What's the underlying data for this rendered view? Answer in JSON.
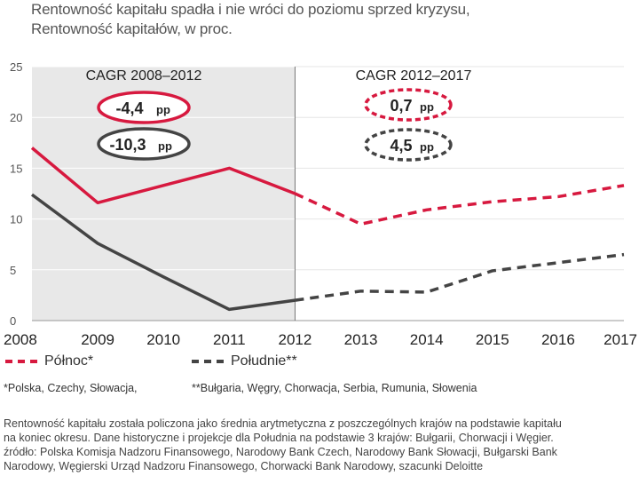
{
  "header": {
    "title": "Rentowność kapitału spadła i nie wróci do poziomu sprzed kryzysu,",
    "subtitle": "Rentowność kapitałów, w proc."
  },
  "colors": {
    "polnoc": "#d7193f",
    "poludnie": "#444444",
    "shade": "#e8e8e8",
    "grid": "#ffffff"
  },
  "annotations": {
    "cagr_left": "CAGR 2008–2012",
    "cagr_right": "CAGR 2012–2017",
    "polnoc_left": "-4,4",
    "poludnie_left": "-10,3",
    "polnoc_right": "0,7",
    "poludnie_right": "4,5",
    "unit": "pp"
  },
  "legend": {
    "polnoc": "Północ*",
    "poludnie": "Południe**"
  },
  "notes": {
    "polnoc": "*Polska, Czechy, Słowacja,",
    "poludnie": "**Bułgaria, Węgry, Chorwacja, Serbia, Rumunia, Słowenia"
  },
  "footer": {
    "line1": "Rentowność kapitału została policzona jako średnia arytmetyczna z poszczególnych krajów na podstawie kapitału",
    "line2": "na koniec okresu. Dane historyczne i projekcje dla Południa na podstawie 3 krajów: Bułgarii, Chorwacji i Węgier.",
    "line3": "źródło: Polska Komisja Nadzoru Finansowego, Narodowy Bank Czech, Narodowy Bank Słowacji, Bułgarski Bank",
    "line4": "Narodowy, Węgierski Urząd Nadzoru Finansowego, Chorwacki Bank Narodowy, szacunki Deloitte"
  },
  "chart_data": {
    "type": "line",
    "x": [
      2008,
      2009,
      2010,
      2011,
      2012,
      2013,
      2014,
      2015,
      2016,
      2017
    ],
    "ylim": [
      0,
      25
    ],
    "yticks": [
      0,
      5,
      10,
      15,
      20,
      25
    ],
    "grid": true,
    "historical_end": 2012,
    "series": [
      {
        "name": "Północ*",
        "values": [
          17.0,
          11.6,
          13.3,
          15.0,
          12.5,
          9.5,
          10.9,
          11.7,
          12.2,
          13.3
        ]
      },
      {
        "name": "Południe**",
        "values": [
          12.4,
          7.6,
          4.3,
          1.1,
          2.0,
          2.9,
          2.8,
          4.9,
          5.7,
          6.5
        ]
      }
    ]
  }
}
